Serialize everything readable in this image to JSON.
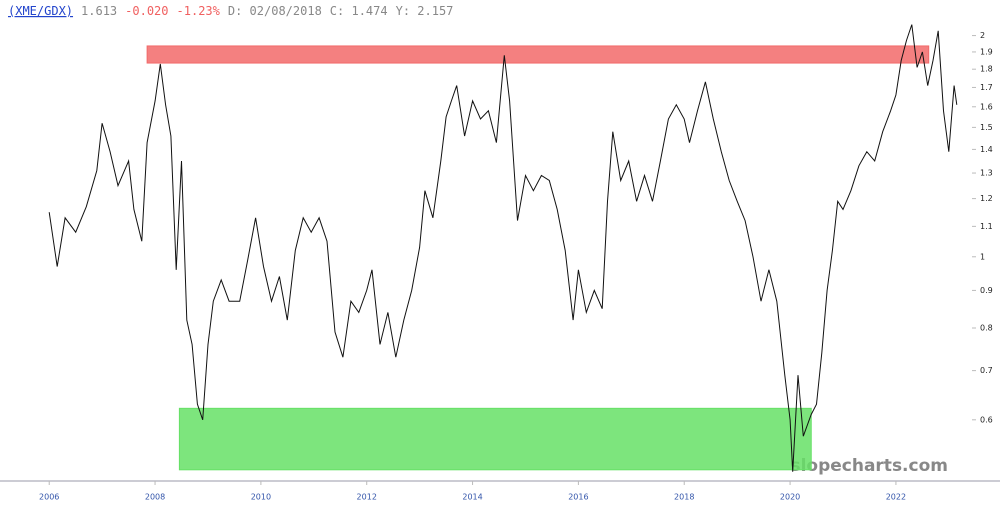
{
  "chart_data": {
    "type": "line",
    "title": "(XME/GDX)",
    "quote": [
      "1.613",
      "-0.020",
      "-1.23%",
      "D: 02/08/2018",
      "C: 1.474",
      "Y: 2.157"
    ],
    "watermark": "slopecharts.com",
    "log_scale": true,
    "color": "#111111",
    "xlim": [
      2005.07,
      2023.4
    ],
    "xticks": [
      2006,
      2008,
      2010,
      2012,
      2014,
      2016,
      2018,
      2020,
      2022
    ],
    "ylim": [
      0.5,
      2.1
    ],
    "yticks": [
      0.6,
      0.7,
      0.8,
      0.9,
      1.0,
      1.1,
      1.2,
      1.3,
      1.4,
      1.5,
      1.6,
      1.7,
      1.8,
      1.9,
      2.0
    ],
    "zones": [
      {
        "color": "#f26a6a",
        "x": [
          2007.85,
          2022.62
        ],
        "y": [
          1.835,
          1.936
        ]
      },
      {
        "color": "#66e066",
        "x": [
          2008.46,
          2020.4
        ],
        "y": [
          0.513,
          0.622
        ]
      }
    ],
    "x": [
      2006.0,
      2006.15,
      2006.3,
      2006.5,
      2006.7,
      2006.9,
      2007.0,
      2007.15,
      2007.3,
      2007.5,
      2007.6,
      2007.75,
      2007.85,
      2008.0,
      2008.1,
      2008.2,
      2008.3,
      2008.4,
      2008.5,
      2008.6,
      2008.7,
      2008.8,
      2008.9,
      2009.0,
      2009.1,
      2009.25,
      2009.4,
      2009.6,
      2009.75,
      2009.9,
      2010.05,
      2010.2,
      2010.35,
      2010.5,
      2010.65,
      2010.8,
      2010.95,
      2011.1,
      2011.25,
      2011.4,
      2011.55,
      2011.7,
      2011.85,
      2012.0,
      2012.1,
      2012.25,
      2012.4,
      2012.55,
      2012.7,
      2012.85,
      2013.0,
      2013.1,
      2013.25,
      2013.4,
      2013.5,
      2013.6,
      2013.7,
      2013.85,
      2014.0,
      2014.15,
      2014.3,
      2014.45,
      2014.6,
      2014.7,
      2014.85,
      2015.0,
      2015.15,
      2015.3,
      2015.45,
      2015.6,
      2015.75,
      2015.9,
      2016.0,
      2016.15,
      2016.3,
      2016.45,
      2016.55,
      2016.65,
      2016.8,
      2016.95,
      2017.1,
      2017.25,
      2017.4,
      2017.55,
      2017.7,
      2017.85,
      2018.0,
      2018.1,
      2018.25,
      2018.4,
      2018.55,
      2018.7,
      2018.85,
      2019.0,
      2019.15,
      2019.3,
      2019.45,
      2019.6,
      2019.75,
      2019.9,
      2020.0,
      2020.05,
      2020.15,
      2020.25,
      2020.4,
      2020.5,
      2020.6,
      2020.7,
      2020.8,
      2020.9,
      2021.0,
      2021.15,
      2021.3,
      2021.45,
      2021.6,
      2021.75,
      2021.9,
      2022.0,
      2022.1,
      2022.2,
      2022.3,
      2022.4,
      2022.5,
      2022.6,
      2022.7,
      2022.8,
      2022.9,
      2023.0,
      2023.1,
      2023.15
    ],
    "values": [
      1.15,
      0.97,
      1.13,
      1.08,
      1.17,
      1.31,
      1.52,
      1.39,
      1.25,
      1.35,
      1.16,
      1.05,
      1.43,
      1.63,
      1.83,
      1.61,
      1.46,
      0.96,
      1.35,
      0.82,
      0.76,
      0.63,
      0.6,
      0.76,
      0.87,
      0.93,
      0.87,
      0.87,
      0.99,
      1.13,
      0.97,
      0.87,
      0.94,
      0.82,
      1.02,
      1.13,
      1.08,
      1.13,
      1.05,
      0.79,
      0.73,
      0.87,
      0.84,
      0.9,
      0.96,
      0.76,
      0.84,
      0.73,
      0.82,
      0.9,
      1.03,
      1.23,
      1.13,
      1.35,
      1.55,
      1.63,
      1.71,
      1.46,
      1.63,
      1.54,
      1.58,
      1.43,
      1.88,
      1.63,
      1.12,
      1.29,
      1.23,
      1.29,
      1.27,
      1.16,
      1.02,
      0.82,
      0.96,
      0.84,
      0.9,
      0.85,
      1.19,
      1.48,
      1.27,
      1.35,
      1.19,
      1.29,
      1.19,
      1.35,
      1.54,
      1.61,
      1.54,
      1.43,
      1.58,
      1.73,
      1.54,
      1.39,
      1.27,
      1.19,
      1.12,
      1.0,
      0.87,
      0.96,
      0.87,
      0.69,
      0.6,
      0.51,
      0.69,
      0.57,
      0.61,
      0.63,
      0.74,
      0.9,
      1.02,
      1.19,
      1.16,
      1.23,
      1.33,
      1.39,
      1.35,
      1.48,
      1.58,
      1.66,
      1.85,
      1.97,
      2.07,
      1.81,
      1.9,
      1.71,
      1.85,
      2.03,
      1.58,
      1.39,
      1.71,
      1.61
    ]
  }
}
